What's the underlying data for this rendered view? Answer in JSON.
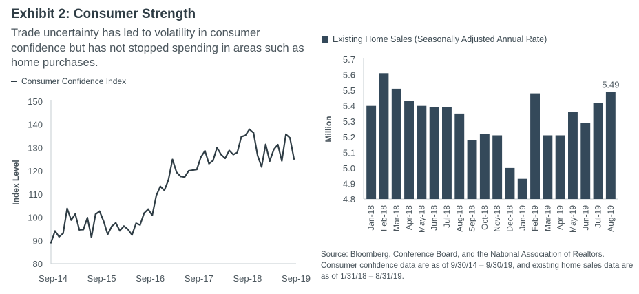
{
  "header": {
    "title": "Exhibit 2: Consumer Strength",
    "subtitle": "Trade uncertainty has led to volatility in consumer confidence but has not stopped spending in areas such as home purchases."
  },
  "footer": {
    "source": "Source: Bloomberg, Conference Board, and the National Association of Realtors. Consumer confidence data are as of 9/30/14 – 9/30/19, and existing home sales data are as of 1/31/18 – 8/31/19."
  },
  "colors": {
    "series": "#2f3d45",
    "bar": "#34495a",
    "axis": "#c6cdd2",
    "text": "#4a555c"
  },
  "chart_data": [
    {
      "type": "line",
      "title": "",
      "legend": "Consumer Confidence Index",
      "legend_position": "top-left",
      "xlabel": "",
      "ylabel": "Index Level",
      "ylim": [
        80,
        150
      ],
      "yticks": [
        80,
        90,
        100,
        110,
        120,
        130,
        140,
        150
      ],
      "xtick_labels": [
        "Sep-14",
        "Sep-15",
        "Sep-16",
        "Sep-17",
        "Sep-18",
        "Sep-19"
      ],
      "grid": false,
      "x_start": "Sep-14",
      "x_end": "Sep-19",
      "series": [
        {
          "name": "Consumer Confidence Index",
          "values": [
            89.0,
            94.1,
            91.6,
            93.1,
            103.8,
            98.8,
            101.4,
            94.6,
            94.7,
            99.8,
            91.3,
            101.3,
            102.6,
            98.3,
            92.6,
            96.1,
            97.6,
            94.2,
            96.2,
            94.8,
            92.4,
            97.4,
            96.7,
            101.8,
            103.5,
            100.8,
            109.4,
            113.3,
            111.6,
            116.1,
            124.9,
            119.4,
            117.6,
            117.3,
            120.0,
            120.3,
            120.6,
            125.9,
            128.6,
            123.1,
            124.4,
            130.0,
            127.0,
            125.4,
            128.8,
            127.0,
            127.9,
            134.7,
            135.3,
            137.9,
            136.4,
            126.6,
            121.7,
            131.4,
            124.2,
            129.2,
            131.3,
            124.3,
            135.8,
            134.2,
            125.1
          ]
        }
      ]
    },
    {
      "type": "bar",
      "title": "",
      "legend": "Existing Home Sales (Seasonally Adjusted Annual Rate)",
      "legend_position": "top-left",
      "xlabel": "",
      "ylabel": "Million",
      "ylim": [
        4.8,
        5.7
      ],
      "yticks": [
        "4.8",
        "4.9",
        "5.0",
        "5.1",
        "5.2",
        "5.3",
        "5.4",
        "5.5",
        "5.6",
        "5.7"
      ],
      "grid": false,
      "categories": [
        "Jan-18",
        "Feb-18",
        "Mar-18",
        "Apr-18",
        "May-18",
        "Jun-18",
        "Jul-18",
        "Aug-18",
        "Sep-18",
        "Oct-18",
        "Nov-18",
        "Dec-18",
        "Jan-19",
        "Feb-19",
        "Mar-19",
        "Apr-19",
        "May-19",
        "Jun-19",
        "Jul-19",
        "Aug-19"
      ],
      "values": [
        5.4,
        5.61,
        5.51,
        5.43,
        5.4,
        5.39,
        5.39,
        5.35,
        5.18,
        5.22,
        5.21,
        5.0,
        4.93,
        5.48,
        5.21,
        5.21,
        5.36,
        5.29,
        5.42,
        5.49
      ],
      "annotations": [
        {
          "category": "Aug-19",
          "text": "5.49"
        }
      ]
    }
  ]
}
